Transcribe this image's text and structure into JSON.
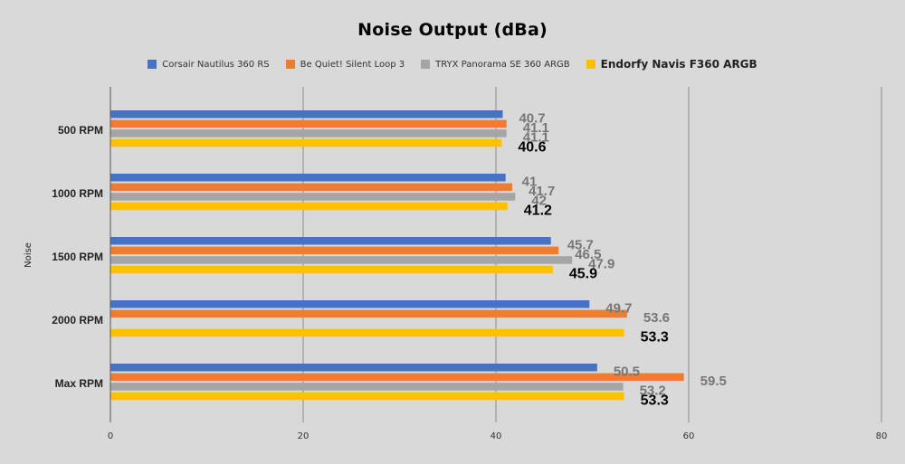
{
  "chart_data": {
    "type": "bar",
    "orientation": "horizontal",
    "title": "Noise Output (dBa)",
    "ylabel": "Noise",
    "xlim": [
      0,
      80
    ],
    "xticks": [
      0,
      20,
      40,
      60,
      80
    ],
    "grid": "vertical",
    "legend_position": "top",
    "categories": [
      "500 RPM",
      "1000 RPM",
      "1500 RPM",
      "2000 RPM",
      "Max RPM"
    ],
    "series": [
      {
        "name": "Corsair Nautilus 360 RS",
        "color": "#4472c4",
        "values": [
          40.7,
          41,
          45.7,
          49.7,
          50.5
        ],
        "labels": [
          "40.7",
          "41",
          "45.7",
          "49.7",
          "50.5"
        ]
      },
      {
        "name": "Be Quiet! Silent Loop 3",
        "color": "#ed7d31",
        "values": [
          41.1,
          41.7,
          46.5,
          53.6,
          59.5
        ],
        "labels": [
          "41.1",
          "41.7",
          "46.5",
          "53.6",
          "59.5"
        ]
      },
      {
        "name": "TRYX Panorama SE 360 ARGB",
        "color": "#a5a5a5",
        "values": [
          41.1,
          42,
          47.9,
          null,
          53.2
        ],
        "labels": [
          "41.1",
          "42",
          "47.9",
          "",
          "53.2"
        ]
      },
      {
        "name": "Endorfy Navis F360 ARGB",
        "color": "#ffc000",
        "values": [
          40.6,
          41.2,
          45.9,
          53.3,
          53.3
        ],
        "labels": [
          "40.6",
          "41.2",
          "45.9",
          "53.3",
          "53.3"
        ],
        "highlight": true
      }
    ]
  }
}
